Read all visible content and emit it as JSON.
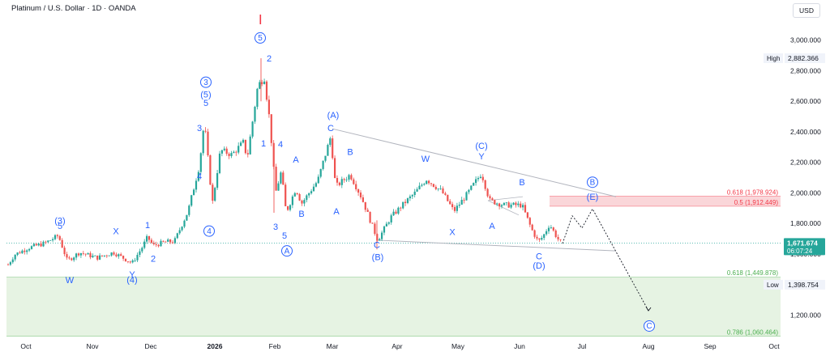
{
  "header": {
    "title": "Platinum / U.S. Dollar · 1D · OANDA",
    "currency": "USD"
  },
  "chart_data": {
    "type": "candlestick",
    "title": "Platinum / U.S. Dollar · 1D · OANDA",
    "y_unit": "USD",
    "y_ticks": [
      "1,200.000",
      "1,400.000",
      "1,600.000",
      "1,800.000",
      "2,000.000",
      "2,200.000",
      "2,400.000",
      "2,600.000",
      "2,800.000",
      "3,000.000"
    ],
    "y_tick_values": [
      1200,
      1400,
      1600,
      1800,
      2000,
      2200,
      2400,
      2600,
      2800,
      3000
    ],
    "ylim": [
      1050,
      3200
    ],
    "x_ticks": [
      "Oct",
      "Nov",
      "Dec",
      "2026",
      "Feb",
      "Mar",
      "Apr",
      "May",
      "Jun",
      "Jul",
      "Aug",
      "Sep",
      "Oct"
    ],
    "price_markers": {
      "high_label": "High",
      "high_value": "2,882.366",
      "high_num": 2882.366,
      "low_label": "Low",
      "low_value": "1,398.754",
      "low_num": 1398.754,
      "last_value": "1,671.674",
      "last_num": 1671.674,
      "countdown": "06:07:24"
    },
    "fib_levels": [
      {
        "label": "0.618 (1,978.924)",
        "value": 1978.924,
        "color": "#f23645"
      },
      {
        "label": "0.5 (1,912.449)",
        "value": 1912.449,
        "color": "#f23645"
      },
      {
        "label": "0.618 (1,449.878)",
        "value": 1449.878,
        "color": "#4caf50"
      },
      {
        "label": "0.786 (1,060.464)",
        "value": 1060.464,
        "color": "#4caf50"
      }
    ],
    "resistance_zone": [
      1912.449,
      1978.924
    ],
    "support_zone": [
      1060.464,
      1449.878
    ],
    "wave_labels": [
      {
        "text": "(3)",
        "x": 74,
        "p": 1815
      },
      {
        "text": "5",
        "x": 74,
        "p": 1780
      },
      {
        "text": "W",
        "x": 86,
        "p": 1425
      },
      {
        "text": "X",
        "x": 143,
        "p": 1745
      },
      {
        "text": "1",
        "x": 182,
        "p": 1785
      },
      {
        "text": "Y",
        "x": 163,
        "p": 1462
      },
      {
        "text": "(4)",
        "x": 163,
        "p": 1427
      },
      {
        "text": "2",
        "x": 189,
        "p": 1565
      },
      {
        "text": "4",
        "x": 246,
        "p": 2105
      },
      {
        "text": "3",
        "x": 246,
        "p": 2420
      },
      {
        "text": "5",
        "x": 254,
        "p": 2585
      },
      {
        "text": "(5)",
        "x": 254,
        "p": 2640
      },
      {
        "text": "1",
        "x": 325,
        "p": 2320
      },
      {
        "text": "2",
        "x": 332,
        "p": 2875
      },
      {
        "text": "4",
        "x": 346,
        "p": 2315
      },
      {
        "text": "3",
        "x": 340,
        "p": 1775
      },
      {
        "text": "5",
        "x": 351,
        "p": 1715
      },
      {
        "text": "A",
        "x": 365,
        "p": 2215
      },
      {
        "text": "B",
        "x": 372,
        "p": 1860
      },
      {
        "text": "A",
        "x": 415,
        "p": 1875
      },
      {
        "text": "C",
        "x": 408,
        "p": 2420
      },
      {
        "text": "(A)",
        "x": 411,
        "p": 2505
      },
      {
        "text": "B",
        "x": 432,
        "p": 2265
      },
      {
        "text": "C",
        "x": 465,
        "p": 1655
      },
      {
        "text": "(B)",
        "x": 466,
        "p": 1575
      },
      {
        "text": "W",
        "x": 525,
        "p": 2220
      },
      {
        "text": "X",
        "x": 558,
        "p": 1740
      },
      {
        "text": "Y",
        "x": 594,
        "p": 2235
      },
      {
        "text": "(C)",
        "x": 594,
        "p": 2305
      },
      {
        "text": "A",
        "x": 607,
        "p": 1780
      },
      {
        "text": "B",
        "x": 644,
        "p": 2065
      },
      {
        "text": "C",
        "x": 665,
        "p": 1580
      },
      {
        "text": "(D)",
        "x": 665,
        "p": 1520
      },
      {
        "text": "(E)",
        "x": 731,
        "p": 1970
      }
    ],
    "circled_labels": [
      {
        "text": "3",
        "x": 254,
        "p": 2725
      },
      {
        "text": "5",
        "x": 321,
        "p": 3015
      },
      {
        "text": "4",
        "x": 258,
        "p": 1750
      },
      {
        "text": "A",
        "x": 354,
        "p": 1620
      },
      {
        "text": "B",
        "x": 731,
        "p": 2070
      },
      {
        "text": "C",
        "x": 801,
        "p": 1128
      }
    ]
  }
}
